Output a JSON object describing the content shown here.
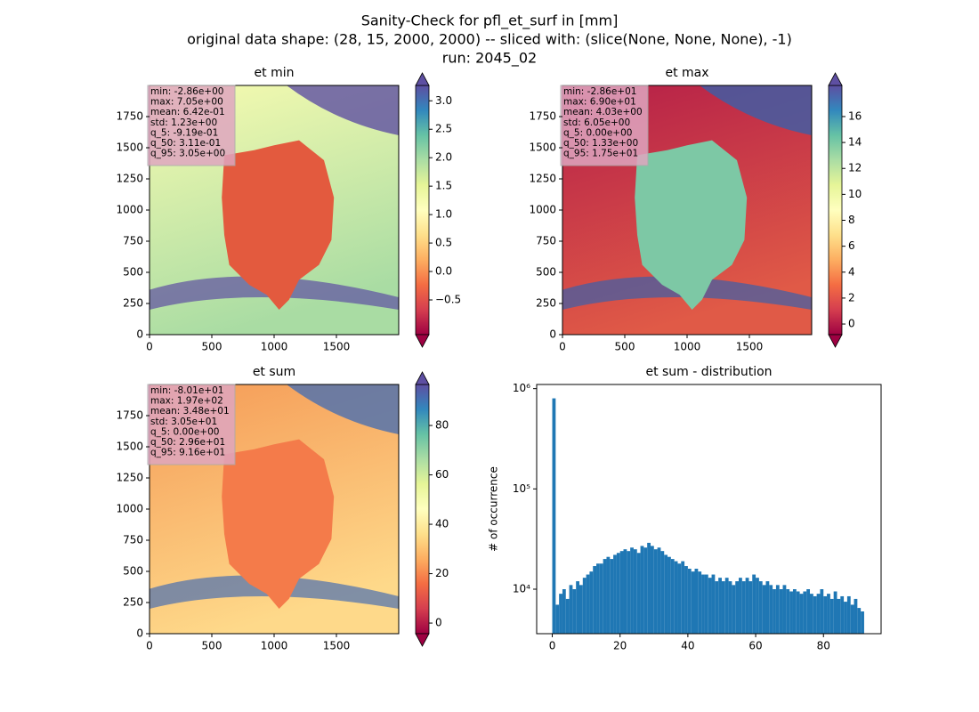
{
  "suptitle": [
    "Sanity-Check for pfl_et_surf in [mm]",
    "original data shape: (28, 15, 2000, 2000) -- sliced with: (slice(None, None, None), -1)",
    "run: 2045_02"
  ],
  "chart_data": [
    {
      "type": "image",
      "title": "et min",
      "cmap": "Spectral",
      "xlim": [
        0,
        2000
      ],
      "ylim": [
        0,
        2000
      ],
      "xticks": [
        0,
        500,
        1000,
        1500
      ],
      "yticks": [
        0,
        250,
        500,
        750,
        1000,
        1250,
        1500,
        1750
      ],
      "colorbar": {
        "lim": [
          -1.11,
          3.27
        ],
        "ticks": [
          {
            "value": -0.5,
            "label": "−0.5"
          },
          {
            "value": 0,
            "label": "0.0"
          },
          {
            "value": 0.5,
            "label": "0.5"
          },
          {
            "value": 1,
            "label": "1.0"
          },
          {
            "value": 1.5,
            "label": "1.5"
          },
          {
            "value": 2,
            "label": "2.0"
          },
          {
            "value": 2.5,
            "label": "2.5"
          },
          {
            "value": 3,
            "label": "3.0"
          }
        ]
      },
      "stats": [
        "min: -2.86e+00",
        "max: 7.05e+00",
        "mean: 6.42e-01",
        "std: 1.23e+00",
        "q_5: -9.19e-01",
        "q_50: 3.11e-01",
        "q_95: 3.05e+00"
      ]
    },
    {
      "type": "image",
      "title": "et max",
      "cmap": "Spectral",
      "xlim": [
        0,
        2000
      ],
      "ylim": [
        0,
        2000
      ],
      "xticks": [
        0,
        500,
        1000,
        1500
      ],
      "yticks": [
        0,
        250,
        500,
        750,
        1000,
        1250,
        1500,
        1750
      ],
      "colorbar": {
        "lim": [
          -0.82,
          18.4
        ],
        "ticks": [
          0,
          2,
          4,
          6,
          8,
          10,
          12,
          14,
          16
        ]
      },
      "stats": [
        "min: -2.86e+01",
        "max: 6.90e+01",
        "mean: 4.03e+00",
        "std: 6.05e+00",
        "q_5: 0.00e+00",
        "q_50: 1.33e+00",
        "q_95: 1.75e+01"
      ]
    },
    {
      "type": "image",
      "title": "et sum",
      "cmap": "Spectral",
      "xlim": [
        0,
        2000
      ],
      "ylim": [
        0,
        2000
      ],
      "xticks": [
        0,
        500,
        1000,
        1500
      ],
      "yticks": [
        0,
        250,
        500,
        750,
        1000,
        1250,
        1500,
        1750
      ],
      "colorbar": {
        "lim": [
          -4.3,
          96.6
        ],
        "ticks": [
          0,
          20,
          40,
          60,
          80
        ]
      },
      "stats": [
        "min: -8.01e+01",
        "max: 1.97e+02",
        "mean: 3.48e+01",
        "std: 3.05e+01",
        "q_5: 0.00e+00",
        "q_50: 2.96e+01",
        "q_95: 9.16e+01"
      ]
    },
    {
      "type": "histogram",
      "title": "et sum - distribution",
      "y_label": "# of occurrence",
      "color": "#1f77b4",
      "log_y": true,
      "xlim": [
        -4.6,
        97
      ],
      "xticks": [
        0,
        20,
        40,
        60,
        80
      ],
      "ylim": [
        3600,
        1100000
      ],
      "yticks": [
        {
          "value": 10000,
          "label": "10⁴"
        },
        {
          "value": 100000,
          "label": "10⁵"
        },
        {
          "value": 1000000,
          "label": "10⁶"
        }
      ],
      "bins": [
        0,
        1,
        2,
        3,
        4,
        5,
        6,
        7,
        8,
        9,
        10,
        11,
        12,
        13,
        14,
        15,
        16,
        17,
        18,
        19,
        20,
        21,
        22,
        23,
        24,
        25,
        26,
        27,
        28,
        29,
        30,
        31,
        32,
        33,
        34,
        35,
        36,
        37,
        38,
        39,
        40,
        41,
        42,
        43,
        44,
        45,
        46,
        47,
        48,
        49,
        50,
        51,
        52,
        53,
        54,
        55,
        56,
        57,
        58,
        59,
        60,
        61,
        62,
        63,
        64,
        65,
        66,
        67,
        68,
        69,
        70,
        71,
        72,
        73,
        74,
        75,
        76,
        77,
        78,
        79,
        80,
        81,
        82,
        83,
        84,
        85,
        86,
        87,
        88,
        89,
        90,
        91,
        92
      ],
      "counts": [
        800000,
        7000,
        9000,
        10000,
        8000,
        11000,
        10000,
        12000,
        11000,
        13000,
        14000,
        15000,
        17000,
        18000,
        18000,
        20000,
        21000,
        20000,
        22000,
        23000,
        24000,
        25000,
        24000,
        26000,
        25000,
        23000,
        27000,
        26000,
        29000,
        27000,
        25000,
        26000,
        24000,
        22000,
        21000,
        20000,
        19000,
        18000,
        19000,
        17000,
        16000,
        15000,
        16000,
        15000,
        14000,
        14000,
        13000,
        14000,
        12000,
        13000,
        12000,
        13000,
        12000,
        11000,
        12000,
        13000,
        12000,
        13000,
        12000,
        14000,
        13000,
        12000,
        11000,
        12000,
        11000,
        10000,
        11000,
        10000,
        11000,
        10000,
        9500,
        10000,
        9500,
        9000,
        9500,
        10000,
        9000,
        8500,
        9000,
        10000,
        8500,
        9000,
        8000,
        9500,
        8000,
        8500,
        7500,
        8500,
        7000,
        8000,
        6500,
        6000
      ]
    }
  ]
}
